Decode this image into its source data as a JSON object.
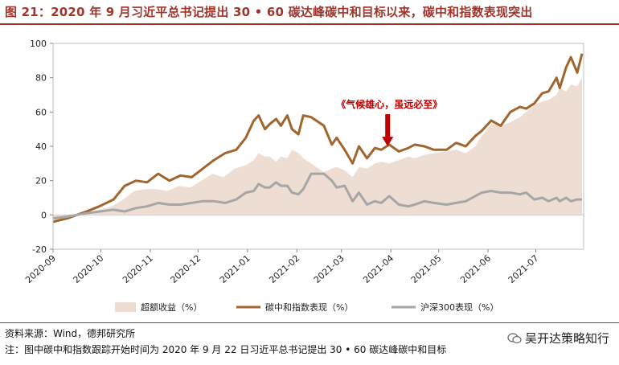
{
  "title": "图 21：2020 年 9 月习近平总书记提出 30 • 60 碳达峰碳中和目标以来，碳中和指数表现突出",
  "source": "资料来源：Wind，德邦研究所",
  "note": "注：图中碳中和指数跟踪开始时间为 2020 年 9 月 22 日习近平总书记提出 30 • 60 碳达峰碳中和目标",
  "watermark": "吴开达策略知行",
  "colors": {
    "area": "#eeddd2",
    "carbon": "#a0662d",
    "hs300": "#a6a6a6",
    "accent": "#a0352c",
    "annotation": "#c00000"
  },
  "chart_data": {
    "type": "line",
    "ylim": [
      -20,
      100
    ],
    "yticks": [
      -20,
      0,
      20,
      40,
      60,
      80,
      100
    ],
    "xlim": [
      "2020-09-01",
      "2021-07-31"
    ],
    "xticks": [
      "2020-09",
      "2020-10",
      "2020-11",
      "2020-12",
      "2021-01",
      "2021-02",
      "2021-03",
      "2021-04",
      "2021-05",
      "2021-06",
      "2021-07"
    ],
    "legend_position": "bottom",
    "annotation": {
      "text": "《气候雄心，虽远必至》",
      "x": "2021-03-30",
      "y": 39
    },
    "series": [
      {
        "name": "超额收益（%）",
        "kind": "area",
        "x": [
          "2020-09-01",
          "2020-09-10",
          "2020-09-20",
          "2020-09-30",
          "2020-10-08",
          "2020-10-15",
          "2020-10-22",
          "2020-10-29",
          "2020-11-05",
          "2020-11-12",
          "2020-11-19",
          "2020-11-26",
          "2020-12-03",
          "2020-12-10",
          "2020-12-17",
          "2020-12-24",
          "2020-12-31",
          "2021-01-05",
          "2021-01-08",
          "2021-01-12",
          "2021-01-15",
          "2021-01-19",
          "2021-01-22",
          "2021-01-26",
          "2021-01-29",
          "2021-02-02",
          "2021-02-05",
          "2021-02-10",
          "2021-02-18",
          "2021-02-23",
          "2021-02-26",
          "2021-03-03",
          "2021-03-08",
          "2021-03-12",
          "2021-03-17",
          "2021-03-22",
          "2021-03-26",
          "2021-03-31",
          "2021-04-06",
          "2021-04-12",
          "2021-04-16",
          "2021-04-22",
          "2021-04-28",
          "2021-05-06",
          "2021-05-12",
          "2021-05-18",
          "2021-05-24",
          "2021-05-28",
          "2021-06-03",
          "2021-06-09",
          "2021-06-15",
          "2021-06-21",
          "2021-06-25",
          "2021-06-30",
          "2021-07-05",
          "2021-07-09",
          "2021-07-14",
          "2021-07-16",
          "2021-07-20",
          "2021-07-23",
          "2021-07-27",
          "2021-07-30"
        ],
        "values": [
          -3,
          -2,
          1,
          3,
          5,
          9,
          14,
          15,
          15,
          14,
          17,
          16,
          20,
          24,
          22,
          27,
          29,
          32,
          36,
          34,
          34,
          31,
          34,
          33,
          38,
          36,
          33,
          30,
          25,
          27,
          28,
          26,
          22,
          28,
          27,
          30,
          31,
          30,
          32,
          34,
          33,
          35,
          36,
          37,
          38,
          36,
          40,
          46,
          53,
          52,
          54,
          57,
          60,
          64,
          66,
          67,
          70,
          74,
          72,
          76,
          75,
          80
        ]
      },
      {
        "name": "碳中和指数表现（%）",
        "kind": "line",
        "x": [
          "2020-09-01",
          "2020-09-10",
          "2020-09-22",
          "2020-09-30",
          "2020-10-09",
          "2020-10-16",
          "2020-10-23",
          "2020-10-30",
          "2020-11-06",
          "2020-11-13",
          "2020-11-20",
          "2020-11-27",
          "2020-12-04",
          "2020-12-11",
          "2020-12-18",
          "2020-12-25",
          "2020-12-31",
          "2021-01-05",
          "2021-01-08",
          "2021-01-12",
          "2021-01-15",
          "2021-01-19",
          "2021-01-22",
          "2021-01-26",
          "2021-01-29",
          "2021-02-02",
          "2021-02-05",
          "2021-02-10",
          "2021-02-18",
          "2021-02-23",
          "2021-02-26",
          "2021-03-03",
          "2021-03-08",
          "2021-03-12",
          "2021-03-17",
          "2021-03-22",
          "2021-03-26",
          "2021-03-31",
          "2021-04-06",
          "2021-04-12",
          "2021-04-16",
          "2021-04-22",
          "2021-04-28",
          "2021-05-06",
          "2021-05-12",
          "2021-05-18",
          "2021-05-24",
          "2021-05-28",
          "2021-06-03",
          "2021-06-09",
          "2021-06-15",
          "2021-06-21",
          "2021-06-25",
          "2021-06-30",
          "2021-07-05",
          "2021-07-09",
          "2021-07-14",
          "2021-07-16",
          "2021-07-20",
          "2021-07-23",
          "2021-07-27",
          "2021-07-30"
        ],
        "values": [
          -4,
          -2,
          2,
          5,
          9,
          17,
          20,
          19,
          24,
          20,
          23,
          22,
          27,
          32,
          36,
          38,
          45,
          55,
          58,
          50,
          53,
          56,
          52,
          58,
          50,
          47,
          58,
          57,
          52,
          41,
          45,
          38,
          30,
          40,
          33,
          39,
          38,
          41,
          37,
          39,
          41,
          40,
          38,
          38,
          42,
          40,
          46,
          49,
          55,
          52,
          60,
          63,
          62,
          65,
          71,
          72,
          80,
          74,
          86,
          92,
          83,
          94
        ]
      },
      {
        "name": "沪深300表现（%）",
        "kind": "line",
        "x": [
          "2020-09-01",
          "2020-09-10",
          "2020-09-22",
          "2020-09-30",
          "2020-10-09",
          "2020-10-16",
          "2020-10-23",
          "2020-10-30",
          "2020-11-06",
          "2020-11-13",
          "2020-11-20",
          "2020-11-27",
          "2020-12-04",
          "2020-12-11",
          "2020-12-18",
          "2020-12-25",
          "2020-12-31",
          "2021-01-05",
          "2021-01-08",
          "2021-01-12",
          "2021-01-15",
          "2021-01-19",
          "2021-01-22",
          "2021-01-26",
          "2021-01-29",
          "2021-02-02",
          "2021-02-05",
          "2021-02-10",
          "2021-02-18",
          "2021-02-23",
          "2021-02-26",
          "2021-03-03",
          "2021-03-08",
          "2021-03-12",
          "2021-03-17",
          "2021-03-22",
          "2021-03-26",
          "2021-03-31",
          "2021-04-06",
          "2021-04-12",
          "2021-04-16",
          "2021-04-22",
          "2021-04-28",
          "2021-05-06",
          "2021-05-12",
          "2021-05-18",
          "2021-05-24",
          "2021-05-28",
          "2021-06-03",
          "2021-06-09",
          "2021-06-15",
          "2021-06-21",
          "2021-06-25",
          "2021-06-30",
          "2021-07-05",
          "2021-07-09",
          "2021-07-14",
          "2021-07-16",
          "2021-07-20",
          "2021-07-23",
          "2021-07-27",
          "2021-07-30"
        ],
        "values": [
          -2,
          -1,
          1,
          2,
          3,
          2,
          4,
          5,
          7,
          6,
          6,
          7,
          8,
          8,
          7,
          9,
          13,
          14,
          18,
          16,
          16,
          19,
          17,
          17,
          13,
          12,
          15,
          24,
          24,
          20,
          16,
          17,
          8,
          13,
          6,
          8,
          7,
          11,
          6,
          5,
          6,
          8,
          7,
          6,
          7,
          8,
          11,
          13,
          14,
          13,
          13,
          12,
          13,
          9,
          10,
          8,
          10,
          8,
          10,
          8,
          9,
          9
        ]
      }
    ]
  }
}
